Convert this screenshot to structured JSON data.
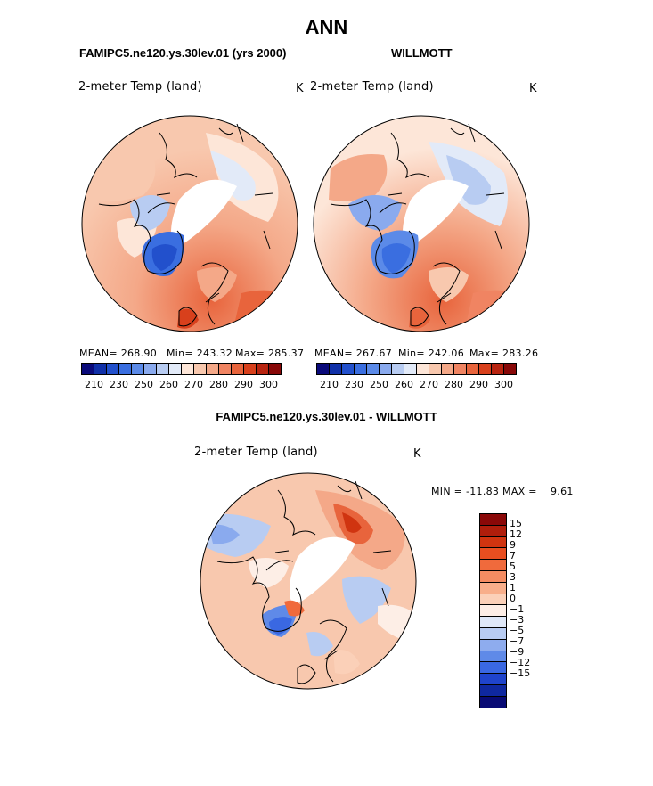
{
  "title": "ANN",
  "panels": [
    {
      "case": "FAMIPC5.ne120.ys.30lev.01 (yrs 2000)",
      "variable": "2-meter Temp (land)",
      "units": "K",
      "stats": {
        "mean": "MEAN= 268.90",
        "min": "Min= 243.32",
        "max": "Max= 285.37"
      }
    },
    {
      "case": "WILLMOTT",
      "variable": "2-meter Temp (land)",
      "units": "K",
      "stats": {
        "mean": "MEAN= 267.67",
        "min": "Min= 242.06",
        "max": "Max= 283.26"
      }
    }
  ],
  "diff": {
    "title": "FAMIPC5.ne120.ys.30lev.01 - WILLMOTT",
    "variable": "2-meter Temp (land)",
    "units": "K",
    "minmax": "MIN = -11.83 MAX =    9.61"
  },
  "colorbar_abs": {
    "colors": [
      "#0a0a7a",
      "#1030a8",
      "#2250cc",
      "#3a6ee0",
      "#5b8ae8",
      "#8aaaee",
      "#b8ccf2",
      "#e2eaf8",
      "#fde6d8",
      "#f8c8ae",
      "#f4a888",
      "#f08462",
      "#e8643c",
      "#d8401c",
      "#b82410",
      "#880808"
    ],
    "labels": [
      "210",
      "230",
      "250",
      "260",
      "270",
      "280",
      "290",
      "300"
    ]
  },
  "colorbar_diff": {
    "colors": [
      "#8a0808",
      "#b01e0c",
      "#d03410",
      "#e84e20",
      "#f06a3c",
      "#f48c62",
      "#f8ae8a",
      "#fbd0b8",
      "#fdeee6",
      "#dfe8f8",
      "#b8ccf2",
      "#8eacee",
      "#5f8ae8",
      "#3a68e2",
      "#1f44cc",
      "#0f28a0",
      "#080a74"
    ],
    "labels": [
      "15",
      "12",
      "9",
      "7",
      "5",
      "3",
      "1",
      "0",
      "−1",
      "−3",
      "−5",
      "−7",
      "−9",
      "−12",
      "−15"
    ]
  },
  "chart_data": [
    {
      "type": "heatmap",
      "title": "2-meter Temp (land)",
      "subtitle": "FAMIPC5.ne120.ys.30lev.01 (yrs 2000)",
      "units": "K",
      "projection": "north polar stereographic",
      "mean": 268.9,
      "min": 243.32,
      "max": 285.37,
      "levels": [
        210,
        220,
        230,
        240,
        250,
        255,
        260,
        265,
        270,
        275,
        280,
        285,
        290,
        295,
        300
      ]
    },
    {
      "type": "heatmap",
      "title": "2-meter Temp (land)",
      "subtitle": "WILLMOTT",
      "units": "K",
      "projection": "north polar stereographic",
      "mean": 267.67,
      "min": 242.06,
      "max": 283.26,
      "levels": [
        210,
        220,
        230,
        240,
        250,
        255,
        260,
        265,
        270,
        275,
        280,
        285,
        290,
        295,
        300
      ]
    },
    {
      "type": "heatmap",
      "title": "2-meter Temp (land)",
      "subtitle": "FAMIPC5.ne120.ys.30lev.01 - WILLMOTT",
      "units": "K",
      "projection": "north polar stereographic",
      "min": -11.83,
      "max": 9.61,
      "levels": [
        -15,
        -12,
        -9,
        -7,
        -5,
        -3,
        -1,
        0,
        1,
        3,
        5,
        7,
        9,
        12,
        15
      ]
    }
  ]
}
